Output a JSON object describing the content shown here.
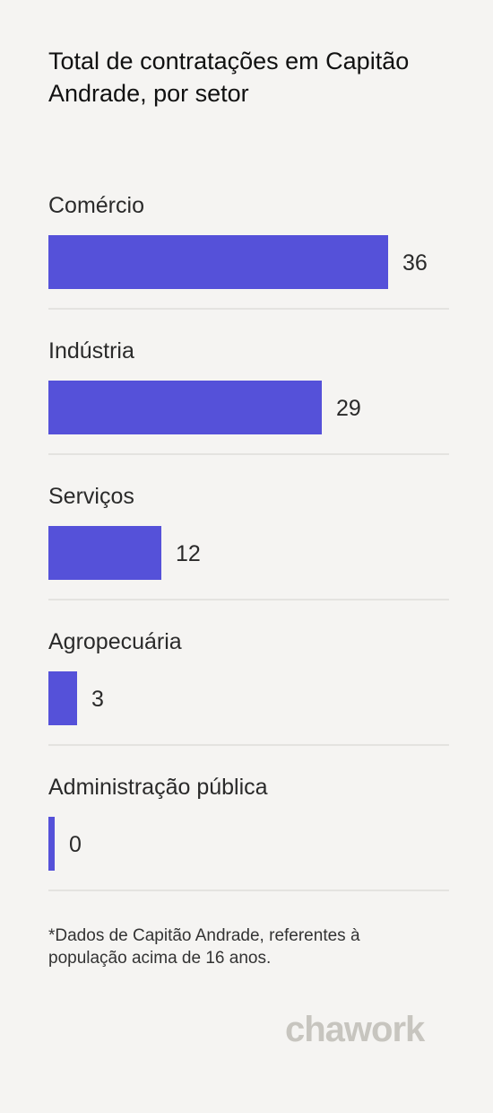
{
  "chart_data": {
    "type": "bar",
    "orientation": "horizontal",
    "title": "Total de contratações em Capitão Andrade, por setor",
    "categories": [
      "Comércio",
      "Indústria",
      "Serviços",
      "Agropecuária",
      "Administração pública"
    ],
    "values": [
      36,
      29,
      12,
      3,
      0
    ],
    "value_labels": [
      "36",
      "29",
      "12",
      "3",
      "0"
    ],
    "xlim": [
      0,
      36
    ],
    "grid": false,
    "legend": "none",
    "bar_color": "#5551d9"
  },
  "footnote": "*Dados de Capitão Andrade, referentes à população acima de 16 anos.",
  "brand": {
    "name": "chawork",
    "color": "#c7c5bf"
  },
  "colors": {
    "background": "#f5f4f2",
    "bar": "#5551d9",
    "divider": "#e4e3e0"
  }
}
